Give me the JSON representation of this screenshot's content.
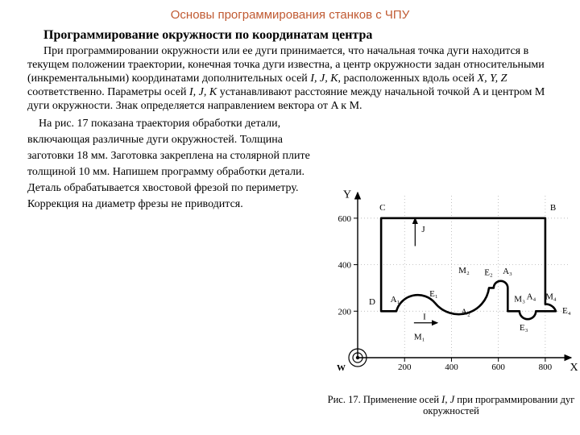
{
  "title": "Основы программирования станков с ЧПУ",
  "subheading": "Программирование окружности по координатам центра",
  "para1_html": "При программировании окружности или ее дуги принимается, что начальная точка дуги находится в текущем положении траектории, конечная точка дуги известна, а центр окружности задан относительными (инкрементальными) координатами дополнительных осей <em>I, J, K</em>, расположенных вдоль осей <em>X, Y, Z</em> соответственно. Параметры осей <em>I, J, K</em> устанавливают расстояние между начальной точкой A и центром M дуги окружности. Знак определяется направлением вектора от A к M.",
  "para2_html": "На рис. 17 показана траектория обработки детали, включающая различные дуги окружностей. Толщина заготовки 18 мм. Заготовка закреплена на столярной плите толщиной 10 мм. Напишем программу обработки детали. Деталь обрабатывается хвостовой фрезой по периметру. Коррекция на диаметр фрезы не приводится.",
  "figure": {
    "background": "#ffffff",
    "stroke": "#000000",
    "grid_color": "#000000",
    "contour_width": 2.6,
    "y_axis_label": "Y",
    "x_axis_label": "X",
    "x_ticks": [
      200,
      400,
      600,
      800
    ],
    "y_ticks": [
      200,
      400,
      600
    ],
    "origin_label": "W",
    "labels": {
      "I": "I",
      "J": "J",
      "A1": "A₁",
      "A2": "A₂",
      "A3": "A₃",
      "A4": "A₄",
      "M1": "M₁",
      "M2": "M₂",
      "M3": "M₃",
      "M4": "M₄",
      "E1": "E₁",
      "E2": "E₂",
      "E3": "E₃",
      "E4": "E₄",
      "B": "B",
      "C": "C",
      "D": "D"
    },
    "tick_fontsize": 11,
    "label_fontsize": 11,
    "axis_label_fontsize": 14
  },
  "caption_html": "Рис. 17. Применение осей <em>I, J</em> при программировании дуг окружностей"
}
